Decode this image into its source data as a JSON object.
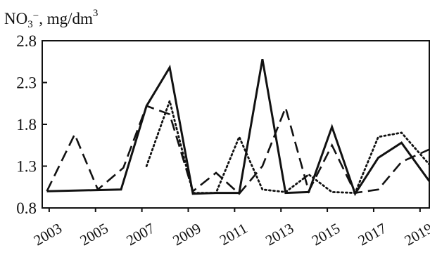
{
  "chart_data": {
    "type": "line",
    "title": "",
    "xlabel": "",
    "ylabel": "NO₃⁻, mg/dm³",
    "ylabel_parts": {
      "base": "NO",
      "sub": "3",
      "sup_ion": "−",
      "unit": ", mg/dm",
      "unit_sup": "3"
    },
    "x_tick_labels": [
      "2003",
      "2005",
      "2007",
      "2009",
      "2011",
      "2013",
      "2015",
      "2017",
      "2019"
    ],
    "y_tick_labels": [
      "2.8",
      "2.3",
      "1.8",
      "1.3",
      "0.8"
    ],
    "xlim": [
      2002.7,
      2019.4
    ],
    "ylim": [
      0.8,
      2.8
    ],
    "grid": false,
    "legend": "none",
    "colors": {
      "line": "#111111",
      "axis": "#111111",
      "text": "#111111"
    },
    "series": [
      {
        "style": "solid",
        "x": [
          2002.9,
          2006.1,
          2007.2,
          2008.2,
          2009.2,
          2010.2,
          2011.2,
          2012.2,
          2013.2,
          2014.2,
          2015.2,
          2016.2,
          2017.2,
          2018.2,
          2019.4
        ],
        "values": [
          1.0,
          1.02,
          2.02,
          2.48,
          0.97,
          0.98,
          0.98,
          2.58,
          0.98,
          0.99,
          1.77,
          0.97,
          1.4,
          1.58,
          1.12
        ]
      },
      {
        "style": "dashed",
        "x": [
          2002.9,
          2004.1,
          2005.1,
          2006.2,
          2007.2,
          2008.2,
          2009.2,
          2010.2,
          2011.2,
          2012.2,
          2013.2,
          2014.2,
          2015.2,
          2016.2,
          2017.2,
          2018.2,
          2019.4
        ],
        "values": [
          1.0,
          1.68,
          1.02,
          1.28,
          2.02,
          1.92,
          1.0,
          1.22,
          0.97,
          1.3,
          2.0,
          1.0,
          1.55,
          0.98,
          1.02,
          1.35,
          1.5
        ]
      },
      {
        "style": "dotted",
        "x": [
          2007.2,
          2008.2,
          2009.2,
          2010.2,
          2011.2,
          2012.2,
          2013.2,
          2014.2,
          2015.2,
          2016.2,
          2017.2,
          2018.2,
          2019.4
        ],
        "values": [
          1.3,
          2.08,
          0.98,
          0.98,
          1.65,
          1.02,
          0.99,
          1.2,
          0.99,
          0.98,
          1.65,
          1.7,
          1.32
        ]
      }
    ]
  }
}
